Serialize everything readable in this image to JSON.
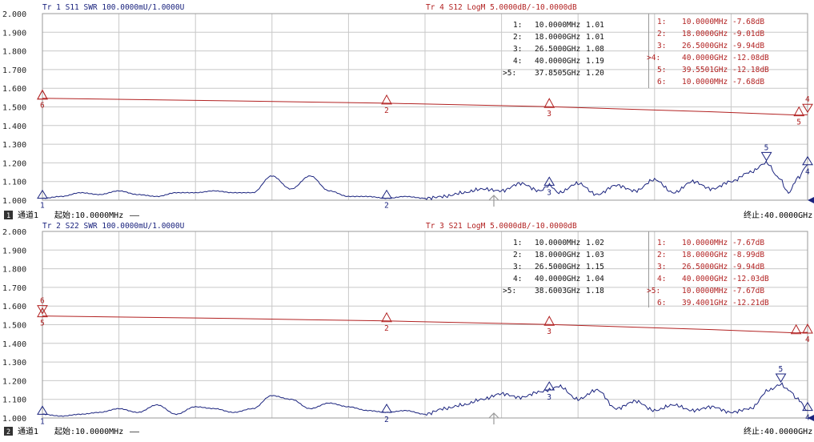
{
  "colors": {
    "trace_swr": "#1a237e",
    "trace_logm": "#b22222",
    "grid": "#c8c8c8",
    "channel_badge_bg": "#333333"
  },
  "yticks_left": [
    "2.000",
    "1.900",
    "1.800",
    "1.700",
    "1.600",
    "1.500",
    "1.400",
    "1.300",
    "1.200",
    "1.100",
    "1.000"
  ],
  "channels": [
    {
      "swr_header": "Tr 1  S11 SWR 100.0000mU/1.0000U",
      "logm_header": "Tr 4  S12 LogM 5.0000dB/-10.0000dB",
      "badge": "1",
      "channel_label": "通道1",
      "start_label": "起始:10.0000MHz",
      "start_dashes": "——",
      "stop_label": "终止:40.0000GHz",
      "swr_markers": [
        {
          "idx": "1:",
          "freq": "10.0000MHz",
          "val": "1.01"
        },
        {
          "idx": "2:",
          "freq": "18.0000GHz",
          "val": "1.01"
        },
        {
          "idx": "3:",
          "freq": "26.5000GHz",
          "val": "1.08"
        },
        {
          "idx": "4:",
          "freq": "40.0000GHz",
          "val": "1.19"
        },
        {
          "idx": ">5:",
          "freq": "37.8505GHz",
          "val": "1.20"
        }
      ],
      "logm_markers": [
        {
          "idx": "1:",
          "freq": "10.0000MHz",
          "val": "-7.68dB"
        },
        {
          "idx": "2:",
          "freq": "18.0000GHz",
          "val": "-9.01dB"
        },
        {
          "idx": "3:",
          "freq": "26.5000GHz",
          "val": "-9.94dB"
        },
        {
          "idx": ">4:",
          "freq": "40.0000GHz",
          "val": "-12.08dB"
        },
        {
          "idx": "5:",
          "freq": "39.5501GHz",
          "val": "-12.18dB"
        },
        {
          "idx": "6:",
          "freq": "10.0000MHz",
          "val": "-7.68dB"
        }
      ]
    },
    {
      "swr_header": "Tr 2  S22 SWR 100.0000mU/1.0000U",
      "logm_header": "Tr 3  S21 LogM 5.0000dB/-10.0000dB",
      "badge": "2",
      "channel_label": "通道1",
      "start_label": "起始:10.0000MHz",
      "start_dashes": "——",
      "stop_label": "终止:40.0000GHz",
      "swr_markers": [
        {
          "idx": "1:",
          "freq": "10.0000MHz",
          "val": "1.02"
        },
        {
          "idx": "2:",
          "freq": "18.0000GHz",
          "val": "1.03"
        },
        {
          "idx": "3:",
          "freq": "26.5000GHz",
          "val": "1.15"
        },
        {
          "idx": "4:",
          "freq": "40.0000GHz",
          "val": "1.04"
        },
        {
          "idx": ">5:",
          "freq": "38.6003GHz",
          "val": "1.18"
        }
      ],
      "logm_markers": [
        {
          "idx": "1:",
          "freq": "10.0000MHz",
          "val": "-7.67dB"
        },
        {
          "idx": "2:",
          "freq": "18.0000GHz",
          "val": "-8.99dB"
        },
        {
          "idx": "3:",
          "freq": "26.5000GHz",
          "val": "-9.94dB"
        },
        {
          "idx": "4:",
          "freq": "40.0000GHz",
          "val": "-12.03dB"
        },
        {
          "idx": ">5:",
          "freq": "10.0000MHz",
          "val": "-7.67dB"
        },
        {
          "idx": "6:",
          "freq": "39.4001GHz",
          "val": "-12.21dB"
        }
      ]
    }
  ],
  "chart_data": [
    {
      "type": "line",
      "title": "Tr 1  S11 SWR 100.0000mU/1.0000U",
      "xrange_ghz": [
        0.01,
        40
      ],
      "ylim": [
        1.0,
        2.0
      ],
      "grid": true,
      "series": [
        {
          "name": "S11 SWR",
          "x": [
            0.01,
            1,
            2,
            3,
            4,
            5,
            6,
            7,
            8,
            9,
            10,
            11,
            12,
            13,
            14,
            15,
            16,
            17,
            18,
            19,
            20,
            21,
            22,
            23,
            24,
            25,
            26,
            26.5,
            27,
            28,
            29,
            30,
            31,
            32,
            33,
            34,
            35,
            36,
            37,
            37.85,
            38.5,
            39,
            39.5,
            40
          ],
          "y": [
            1.01,
            1.02,
            1.04,
            1.03,
            1.05,
            1.03,
            1.02,
            1.04,
            1.04,
            1.05,
            1.04,
            1.04,
            1.13,
            1.06,
            1.13,
            1.05,
            1.02,
            1.02,
            1.01,
            1.02,
            1.01,
            1.02,
            1.04,
            1.06,
            1.05,
            1.09,
            1.05,
            1.08,
            1.04,
            1.09,
            1.03,
            1.08,
            1.05,
            1.11,
            1.04,
            1.1,
            1.06,
            1.1,
            1.15,
            1.2,
            1.12,
            1.04,
            1.12,
            1.19
          ]
        },
        {
          "name": "S12 LogM",
          "x": [
            0.01,
            10,
            18,
            26.5,
            35,
            39.55,
            40
          ],
          "y": [
            -7.68,
            -8.4,
            -9.01,
            -9.94,
            -11.3,
            -12.18,
            -12.08
          ]
        }
      ]
    },
    {
      "type": "line",
      "title": "Tr 2  S22 SWR 100.0000mU/1.0000U",
      "xrange_ghz": [
        0.01,
        40
      ],
      "ylim": [
        1.0,
        2.0
      ],
      "grid": true,
      "series": [
        {
          "name": "S22 SWR",
          "x": [
            0.01,
            1,
            2,
            3,
            4,
            5,
            6,
            7,
            8,
            9,
            10,
            11,
            12,
            13,
            14,
            15,
            16,
            17,
            18,
            19,
            20,
            21,
            22,
            23,
            24,
            25,
            26,
            26.5,
            27,
            28,
            29,
            30,
            31,
            32,
            33,
            34,
            35,
            36,
            37,
            38,
            38.6,
            39,
            39.5,
            40
          ],
          "y": [
            1.02,
            1.01,
            1.02,
            1.03,
            1.05,
            1.03,
            1.07,
            1.02,
            1.06,
            1.05,
            1.03,
            1.05,
            1.12,
            1.1,
            1.05,
            1.08,
            1.06,
            1.04,
            1.03,
            1.04,
            1.02,
            1.05,
            1.07,
            1.1,
            1.13,
            1.11,
            1.14,
            1.15,
            1.17,
            1.1,
            1.15,
            1.05,
            1.09,
            1.04,
            1.07,
            1.04,
            1.06,
            1.03,
            1.05,
            1.15,
            1.18,
            1.15,
            1.1,
            1.04
          ]
        },
        {
          "name": "S21 LogM",
          "x": [
            0.01,
            10,
            18,
            26.5,
            35,
            39.4,
            40
          ],
          "y": [
            -7.67,
            -8.35,
            -8.99,
            -9.94,
            -11.3,
            -12.21,
            -12.03
          ]
        }
      ]
    }
  ]
}
